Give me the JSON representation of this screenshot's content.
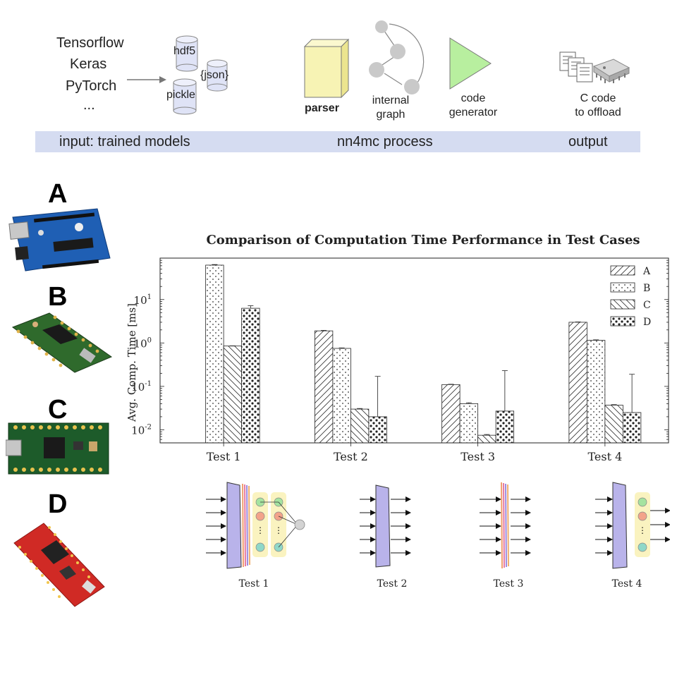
{
  "pipeline": {
    "frameworks": [
      "Tensorflow",
      "Keras",
      "PyTorch",
      "..."
    ],
    "formats": {
      "hdf5": "hdf5",
      "pickle": "pickle",
      "json": "{json}"
    },
    "steps": {
      "parser": "parser",
      "graph_line1": "internal",
      "graph_line2": "graph",
      "codegen_line1": "code",
      "codegen_line2": "generator"
    },
    "output": {
      "line1": "C code",
      "line2": "to offload"
    },
    "band": {
      "input": "input: trained models",
      "process": "nn4mc process",
      "output": "output"
    },
    "colors": {
      "band": "#d5dcf1",
      "parser": "#f7f3b4",
      "generator": "#b8ef9f",
      "node": "#c9c9c9"
    }
  },
  "boards": [
    {
      "letter": "A",
      "color": "#1f5fb4",
      "icon": "arduino-uno-board"
    },
    {
      "letter": "B",
      "color": "#2f6a2c",
      "icon": "teensy-board"
    },
    {
      "letter": "C",
      "color": "#1d5b2a",
      "icon": "teensy-board"
    },
    {
      "letter": "D",
      "color": "#d02a25",
      "icon": "sparkfun-esp32-board"
    }
  ],
  "chart_data": {
    "type": "bar",
    "title": "Comparison of Computation Time Performance in Test Cases",
    "ylabel": "Avg. Comp. Time [ms]",
    "xlabel": "",
    "yscale": "log",
    "ylim": [
      0.005,
      90
    ],
    "yticks": [
      0.01,
      0.1,
      1,
      10
    ],
    "ytick_labels": [
      [
        "10",
        "-2"
      ],
      [
        "10",
        "-1"
      ],
      [
        "10",
        "0"
      ],
      [
        "10",
        "1"
      ]
    ],
    "categories": [
      "Test 1",
      "Test 2",
      "Test 3",
      "Test 4"
    ],
    "legend_position": "top-right",
    "series": [
      {
        "name": "A",
        "pattern": "diagonal-up",
        "values": [
          null,
          1.9,
          0.11,
          3.0
        ],
        "errors": [
          null,
          1.95,
          0.112,
          3.05
        ]
      },
      {
        "name": "B",
        "pattern": "dots",
        "values": [
          62,
          0.75,
          0.04,
          1.15
        ],
        "errors": [
          64,
          0.77,
          0.042,
          1.18
        ]
      },
      {
        "name": "C",
        "pattern": "diagonal-down",
        "values": [
          0.85,
          0.03,
          0.0075,
          0.037
        ],
        "errors": [
          0.86,
          0.031,
          0.0078,
          0.038
        ]
      },
      {
        "name": "D",
        "pattern": "big-dots",
        "values": [
          6.3,
          0.02,
          0.027,
          0.025
        ],
        "errors": [
          7.2,
          0.17,
          0.23,
          0.19
        ]
      }
    ]
  },
  "networks": [
    {
      "label": "Test 1"
    },
    {
      "label": "Test 2"
    },
    {
      "label": "Test 3"
    },
    {
      "label": "Test 4"
    }
  ]
}
